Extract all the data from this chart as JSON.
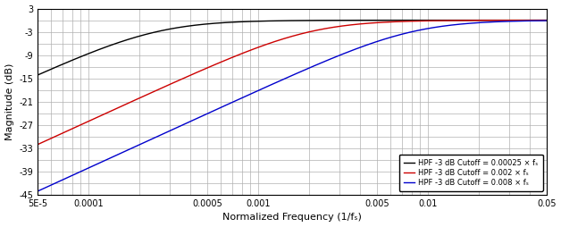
{
  "title": "",
  "xlabel": "Normalized Frequency (1/fₛ)",
  "ylabel": "Magnitude (dB)",
  "xmin": 5e-05,
  "xmax": 0.05,
  "ymin": -45,
  "ymax": 3,
  "yticks": [
    3,
    -3,
    -9,
    -15,
    -21,
    -27,
    -33,
    -39,
    -45
  ],
  "xticks": [
    5e-05,
    0.0001,
    0.0005,
    0.001,
    0.005,
    0.01,
    0.05
  ],
  "xticklabels": [
    "5E-5",
    "0.0001",
    "0.0005",
    "0.001",
    "0.005",
    "0.01",
    "0.05"
  ],
  "cutoffs": [
    0.00025,
    0.002,
    0.008
  ],
  "colors": [
    "#000000",
    "#cc0000",
    "#0000cc"
  ],
  "legend_labels": [
    "HPF -3 dB Cutoff = 0.00025 × fₛ",
    "HPF -3 dB Cutoff = 0.002 × fₛ",
    "HPF -3 dB Cutoff = 0.008 × fₛ"
  ],
  "background_color": "#ffffff",
  "grid_color": "#b0b0b0",
  "filter_order": 1,
  "linewidth": 1.0,
  "figsize": [
    6.28,
    2.54
  ],
  "dpi": 100
}
